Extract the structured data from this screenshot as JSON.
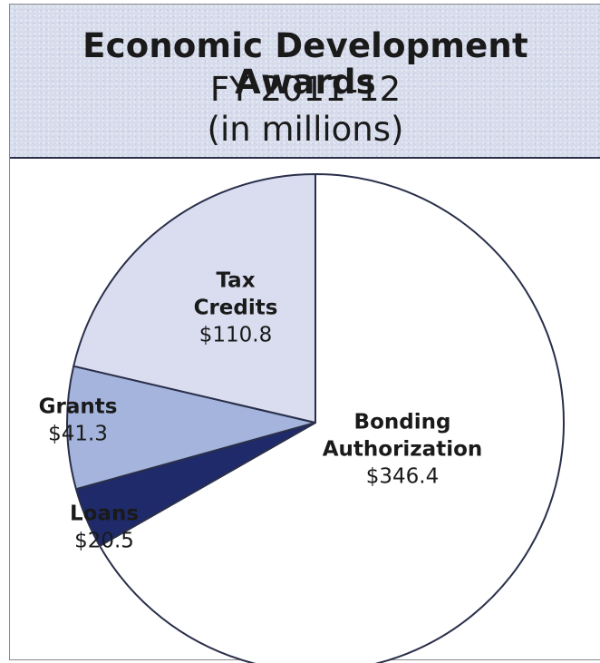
{
  "chart_data": {
    "type": "pie",
    "title": "Economic Development Awards",
    "subtitle_lines": [
      "FY 2011-12",
      "(in millions)"
    ],
    "slices": [
      {
        "label_lines": [
          "Bonding",
          "Authorization"
        ],
        "value_label": "$346.4",
        "value": 346.4,
        "color": "#ffffff"
      },
      {
        "label_lines": [
          "Loans"
        ],
        "value_label": "$20.5",
        "value": 20.5,
        "color": "#1f2a6b"
      },
      {
        "label_lines": [
          "Grants"
        ],
        "value_label": "$41.3",
        "value": 41.3,
        "color": "#a4b4dc"
      },
      {
        "label_lines": [
          "Tax",
          "Credits"
        ],
        "value_label": "$110.8",
        "value": 110.8,
        "color": "#d9ddef"
      }
    ],
    "start_direction": "top",
    "direction": "clockwise",
    "outline_color": "#2a2f4a"
  }
}
